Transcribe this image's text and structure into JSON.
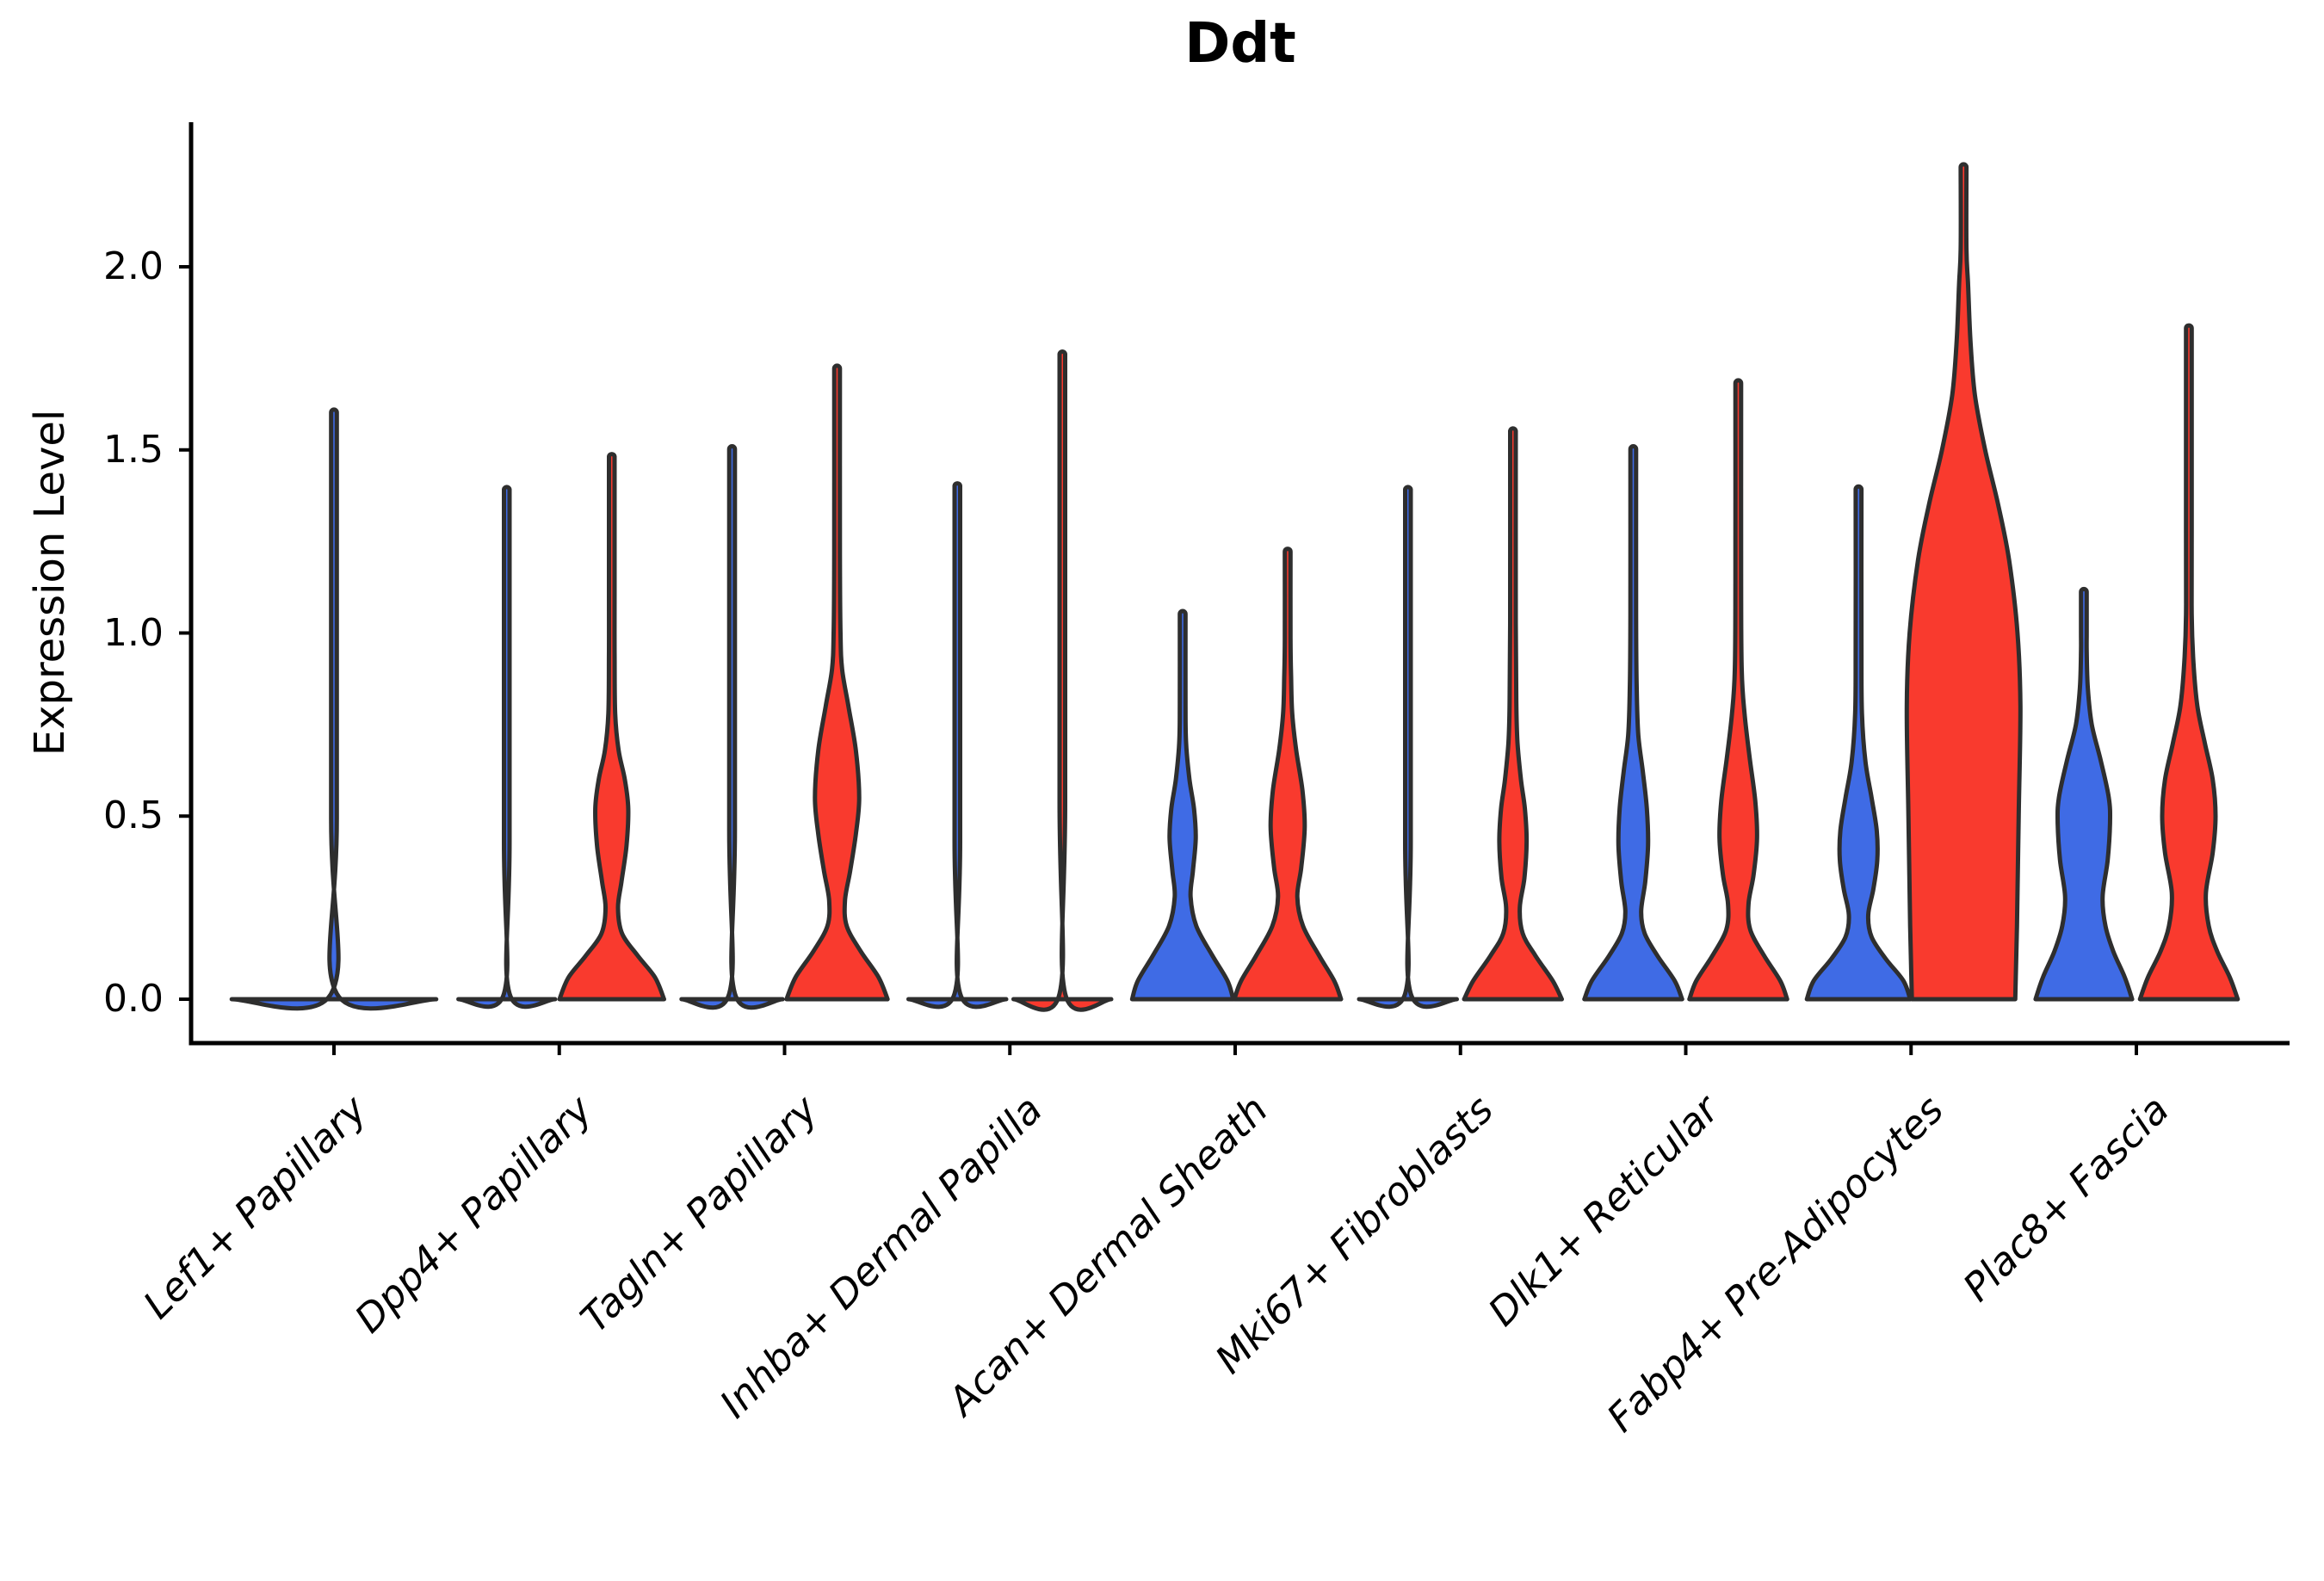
{
  "title": "Ddt",
  "chart_data": {
    "type": "violin",
    "title": "Ddt",
    "ylabel": "Expression Level",
    "xlabel": "",
    "yticks": [
      "0.0",
      "0.5",
      "1.0",
      "1.5",
      "2.0"
    ],
    "ytick_values": [
      0.0,
      0.5,
      1.0,
      1.5,
      2.0
    ],
    "ylim": [
      0.0,
      2.35
    ],
    "grid": "off",
    "legend": "none",
    "colors": {
      "blue_fill": "#3f6be5",
      "red_fill": "#f93a2e",
      "outline": "#2e2e2e",
      "axis": "#000000"
    },
    "categories": [
      {
        "name": "Lef1+ Papillary",
        "slug": "lef1-papillary",
        "violins": [
          {
            "group": "single",
            "color_key": "blue_fill",
            "offset": 0,
            "flat": true,
            "max": 1.61,
            "profile": [
              [
                0,
                1.8
              ],
              [
                0.015,
                0.05
              ]
            ]
          }
        ]
      },
      {
        "name": "Dpp4+ Papillary",
        "slug": "dpp4-papillary",
        "violins": [
          {
            "group": "blue",
            "color_key": "blue_fill",
            "offset": -1,
            "flat": true,
            "max": 1.4,
            "profile": [
              [
                0,
                0.85
              ],
              [
                0.015,
                0.05
              ]
            ]
          },
          {
            "group": "red",
            "color_key": "red_fill",
            "offset": 1,
            "flat": false,
            "max": 1.49,
            "profile": [
              [
                0,
                0.92
              ],
              [
                0.06,
                0.76
              ],
              [
                0.12,
                0.45
              ],
              [
                0.18,
                0.18
              ],
              [
                0.25,
                0.11
              ],
              [
                0.32,
                0.17
              ],
              [
                0.42,
                0.26
              ],
              [
                0.52,
                0.29
              ],
              [
                0.6,
                0.23
              ],
              [
                0.68,
                0.12
              ],
              [
                0.78,
                0.06
              ],
              [
                0.95,
                0.05
              ]
            ]
          }
        ]
      },
      {
        "name": "Tagln+ Papillary",
        "slug": "tagln-papillary",
        "violins": [
          {
            "group": "blue",
            "color_key": "blue_fill",
            "offset": -1,
            "flat": true,
            "max": 1.51,
            "profile": [
              [
                0,
                0.89
              ],
              [
                0.015,
                0.05
              ]
            ]
          },
          {
            "group": "red",
            "color_key": "red_fill",
            "offset": 1,
            "flat": false,
            "max": 1.73,
            "profile": [
              [
                0,
                0.89
              ],
              [
                0.06,
                0.73
              ],
              [
                0.13,
                0.42
              ],
              [
                0.2,
                0.17
              ],
              [
                0.27,
                0.14
              ],
              [
                0.35,
                0.23
              ],
              [
                0.45,
                0.33
              ],
              [
                0.55,
                0.39
              ],
              [
                0.68,
                0.33
              ],
              [
                0.8,
                0.2
              ],
              [
                0.9,
                0.09
              ],
              [
                1.0,
                0.06
              ]
            ]
          }
        ]
      },
      {
        "name": "Inhba+ Dermal Papilla",
        "slug": "inhba-dermal-papilla",
        "violins": [
          {
            "group": "blue",
            "color_key": "blue_fill",
            "offset": -1,
            "flat": true,
            "max": 1.41,
            "profile": [
              [
                0,
                0.86
              ],
              [
                0.015,
                0.05
              ]
            ]
          },
          {
            "group": "red",
            "color_key": "red_fill",
            "offset": 1,
            "flat": true,
            "max": 1.77,
            "profile": [
              [
                0,
                0.86
              ],
              [
                0.015,
                0.05
              ]
            ]
          }
        ]
      },
      {
        "name": "Acan+ Dermal Sheath",
        "slug": "acan-dermal-sheath",
        "violins": [
          {
            "group": "blue",
            "color_key": "blue_fill",
            "offset": -1,
            "flat": false,
            "max": 1.06,
            "profile": [
              [
                0,
                0.89
              ],
              [
                0.05,
                0.79
              ],
              [
                0.12,
                0.52
              ],
              [
                0.2,
                0.24
              ],
              [
                0.28,
                0.14
              ],
              [
                0.35,
                0.18
              ],
              [
                0.44,
                0.23
              ],
              [
                0.52,
                0.2
              ],
              [
                0.6,
                0.12
              ],
              [
                0.7,
                0.06
              ]
            ]
          },
          {
            "group": "red",
            "color_key": "red_fill",
            "offset": 1,
            "flat": false,
            "max": 1.23,
            "profile": [
              [
                0,
                0.94
              ],
              [
                0.05,
                0.82
              ],
              [
                0.12,
                0.55
              ],
              [
                0.2,
                0.27
              ],
              [
                0.28,
                0.17
              ],
              [
                0.36,
                0.24
              ],
              [
                0.47,
                0.3
              ],
              [
                0.57,
                0.26
              ],
              [
                0.68,
                0.15
              ],
              [
                0.78,
                0.08
              ],
              [
                0.88,
                0.06
              ]
            ]
          }
        ]
      },
      {
        "name": "Mki67+ Fibroblasts",
        "slug": "mki67-fibroblasts",
        "violins": [
          {
            "group": "blue",
            "color_key": "blue_fill",
            "offset": -1,
            "flat": true,
            "max": 1.4,
            "profile": [
              [
                0,
                0.86
              ],
              [
                0.015,
                0.05
              ]
            ]
          },
          {
            "group": "red",
            "color_key": "red_fill",
            "offset": 1,
            "flat": false,
            "max": 1.56,
            "profile": [
              [
                0,
                0.86
              ],
              [
                0.05,
                0.7
              ],
              [
                0.12,
                0.39
              ],
              [
                0.18,
                0.17
              ],
              [
                0.25,
                0.12
              ],
              [
                0.33,
                0.2
              ],
              [
                0.43,
                0.24
              ],
              [
                0.52,
                0.21
              ],
              [
                0.6,
                0.14
              ],
              [
                0.7,
                0.08
              ],
              [
                0.8,
                0.06
              ]
            ]
          }
        ]
      },
      {
        "name": "Dlk1+ Reticular",
        "slug": "dlk1-reticular",
        "violins": [
          {
            "group": "blue",
            "color_key": "blue_fill",
            "offset": -1,
            "flat": false,
            "max": 1.51,
            "profile": [
              [
                0,
                0.86
              ],
              [
                0.05,
                0.73
              ],
              [
                0.12,
                0.42
              ],
              [
                0.18,
                0.2
              ],
              [
                0.24,
                0.14
              ],
              [
                0.32,
                0.21
              ],
              [
                0.42,
                0.26
              ],
              [
                0.52,
                0.24
              ],
              [
                0.62,
                0.17
              ],
              [
                0.72,
                0.09
              ],
              [
                0.85,
                0.06
              ]
            ]
          },
          {
            "group": "red",
            "color_key": "red_fill",
            "offset": 1,
            "flat": false,
            "max": 1.69,
            "profile": [
              [
                0,
                0.86
              ],
              [
                0.05,
                0.74
              ],
              [
                0.12,
                0.45
              ],
              [
                0.19,
                0.21
              ],
              [
                0.26,
                0.18
              ],
              [
                0.34,
                0.27
              ],
              [
                0.44,
                0.33
              ],
              [
                0.54,
                0.3
              ],
              [
                0.66,
                0.2
              ],
              [
                0.78,
                0.11
              ],
              [
                0.9,
                0.06
              ]
            ]
          }
        ]
      },
      {
        "name": "Fabp4+ Pre-Adipocytes",
        "slug": "fabp4-pre-adipocytes",
        "violins": [
          {
            "group": "blue",
            "color_key": "blue_fill",
            "offset": -1,
            "flat": false,
            "max": 1.4,
            "profile": [
              [
                0,
                0.91
              ],
              [
                0.05,
                0.79
              ],
              [
                0.11,
                0.48
              ],
              [
                0.17,
                0.23
              ],
              [
                0.23,
                0.17
              ],
              [
                0.3,
                0.26
              ],
              [
                0.38,
                0.33
              ],
              [
                0.46,
                0.32
              ],
              [
                0.55,
                0.23
              ],
              [
                0.65,
                0.12
              ],
              [
                0.78,
                0.06
              ]
            ]
          },
          {
            "group": "red",
            "color_key": "red_fill",
            "offset": 1,
            "flat": false,
            "max": 2.28,
            "profile": [
              [
                0,
                0.91
              ],
              [
                0.2,
                0.94
              ],
              [
                0.5,
                0.97
              ],
              [
                0.8,
                1.0
              ],
              [
                1.0,
                0.95
              ],
              [
                1.2,
                0.8
              ],
              [
                1.35,
                0.61
              ],
              [
                1.5,
                0.38
              ],
              [
                1.65,
                0.2
              ],
              [
                1.8,
                0.12
              ],
              [
                1.95,
                0.08
              ]
            ]
          }
        ]
      },
      {
        "name": "Plac8+ Fascia",
        "slug": "plac8-fascia",
        "violins": [
          {
            "group": "blue",
            "color_key": "blue_fill",
            "offset": -1,
            "flat": false,
            "max": 1.12,
            "profile": [
              [
                0,
                0.85
              ],
              [
                0.06,
                0.72
              ],
              [
                0.13,
                0.52
              ],
              [
                0.2,
                0.38
              ],
              [
                0.28,
                0.33
              ],
              [
                0.38,
                0.42
              ],
              [
                0.48,
                0.46
              ],
              [
                0.55,
                0.44
              ],
              [
                0.65,
                0.3
              ],
              [
                0.75,
                0.14
              ],
              [
                0.85,
                0.07
              ],
              [
                0.95,
                0.05
              ]
            ]
          },
          {
            "group": "red",
            "color_key": "red_fill",
            "offset": 1,
            "flat": false,
            "max": 1.84,
            "profile": [
              [
                0,
                0.86
              ],
              [
                0.06,
                0.72
              ],
              [
                0.13,
                0.5
              ],
              [
                0.2,
                0.35
              ],
              [
                0.29,
                0.3
              ],
              [
                0.4,
                0.42
              ],
              [
                0.5,
                0.47
              ],
              [
                0.6,
                0.42
              ],
              [
                0.7,
                0.28
              ],
              [
                0.8,
                0.15
              ],
              [
                0.92,
                0.08
              ],
              [
                1.05,
                0.05
              ]
            ]
          }
        ]
      }
    ]
  }
}
